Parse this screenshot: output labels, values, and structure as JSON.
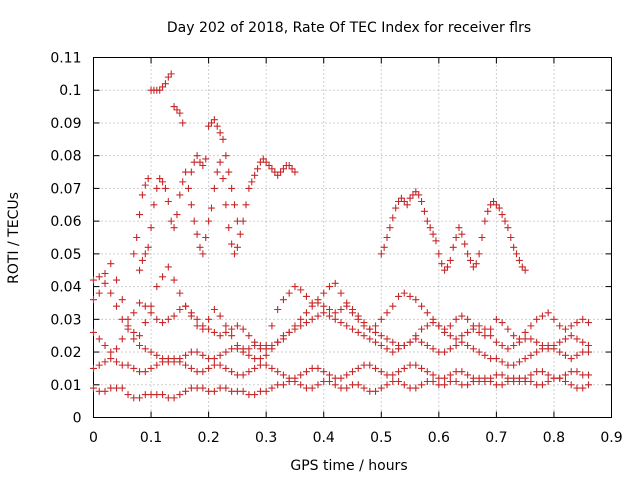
{
  "chart_data": {
    "type": "scatter",
    "title": "Day 202 of 2018, Rate Of TEC Index for receiver flrs",
    "xlabel": "GPS time / hours",
    "ylabel": "ROTI / TECUs",
    "xlim": [
      0,
      0.9
    ],
    "ylim": [
      0,
      0.11
    ],
    "xticks": [
      "0",
      "0.1",
      "0.2",
      "0.3",
      "0.4",
      "0.5",
      "0.6",
      "0.7",
      "0.8",
      "0.9"
    ],
    "yticks": [
      "0",
      "0.01",
      "0.02",
      "0.03",
      "0.04",
      "0.05",
      "0.06",
      "0.07",
      "0.08",
      "0.09",
      "0.1",
      "0.11"
    ],
    "grid": true,
    "marker": "+",
    "series_color": "#c8282a",
    "series": [
      {
        "name": "ROTI",
        "x": [
          0.0,
          0.01,
          0.02,
          0.03,
          0.04,
          0.05,
          0.06,
          0.07,
          0.08,
          0.09,
          0.1,
          0.11,
          0.12,
          0.13,
          0.14,
          0.15,
          0.16,
          0.17,
          0.18,
          0.19,
          0.2,
          0.21,
          0.22,
          0.23,
          0.24,
          0.25,
          0.26,
          0.27,
          0.28,
          0.29,
          0.3,
          0.31,
          0.32,
          0.33,
          0.34,
          0.35,
          0.36,
          0.37,
          0.38,
          0.39,
          0.4,
          0.41,
          0.42,
          0.43,
          0.44,
          0.45,
          0.46,
          0.47,
          0.48,
          0.49,
          0.5,
          0.51,
          0.52,
          0.53,
          0.54,
          0.55,
          0.56,
          0.57,
          0.58,
          0.59,
          0.6,
          0.61,
          0.62,
          0.63,
          0.64,
          0.65,
          0.66,
          0.67,
          0.68,
          0.69,
          0.7,
          0.71,
          0.72,
          0.73,
          0.74,
          0.75,
          0.76,
          0.77,
          0.78,
          0.79,
          0.8,
          0.81,
          0.82,
          0.83,
          0.84,
          0.85,
          0.86,
          0.07,
          0.075,
          0.08,
          0.085,
          0.09,
          0.095,
          0.1,
          0.105,
          0.11,
          0.115,
          0.12,
          0.125,
          0.13,
          0.135,
          0.14,
          0.145,
          0.15,
          0.155,
          0.17,
          0.175,
          0.18,
          0.185,
          0.19,
          0.195,
          0.2,
          0.205,
          0.21,
          0.215,
          0.22,
          0.225,
          0.23,
          0.235,
          0.24,
          0.245,
          0.25,
          0.08,
          0.085,
          0.09,
          0.095,
          0.1,
          0.105,
          0.11,
          0.115,
          0.12,
          0.125,
          0.13,
          0.135,
          0.14,
          0.145,
          0.15,
          0.155,
          0.16,
          0.165,
          0.17,
          0.175,
          0.18,
          0.185,
          0.19,
          0.195,
          0.2,
          0.205,
          0.21,
          0.215,
          0.22,
          0.225,
          0.23,
          0.235,
          0.24,
          0.245,
          0.25,
          0.255,
          0.26,
          0.265,
          0.27,
          0.275,
          0.28,
          0.285,
          0.29,
          0.295,
          0.3,
          0.305,
          0.31,
          0.315,
          0.32,
          0.325,
          0.33,
          0.335,
          0.34,
          0.345,
          0.35,
          0.5,
          0.505,
          0.51,
          0.515,
          0.52,
          0.525,
          0.53,
          0.535,
          0.54,
          0.545,
          0.55,
          0.555,
          0.56,
          0.565,
          0.57,
          0.575,
          0.58,
          0.585,
          0.59,
          0.595,
          0.6,
          0.605,
          0.61,
          0.615,
          0.62,
          0.625,
          0.63,
          0.635,
          0.64,
          0.645,
          0.65,
          0.655,
          0.66,
          0.665,
          0.67,
          0.675,
          0.68,
          0.685,
          0.69,
          0.695,
          0.7,
          0.705,
          0.71,
          0.715,
          0.72,
          0.725,
          0.73,
          0.735,
          0.74,
          0.745,
          0.75,
          0.0,
          0.01,
          0.02,
          0.03,
          0.04,
          0.05,
          0.06,
          0.07,
          0.08,
          0.09,
          0.1,
          0.11,
          0.12,
          0.13,
          0.14,
          0.15,
          0.16,
          0.17,
          0.18,
          0.19,
          0.2,
          0.21,
          0.22,
          0.23,
          0.24,
          0.25,
          0.26,
          0.27,
          0.28,
          0.29,
          0.3,
          0.31,
          0.32,
          0.33,
          0.34,
          0.35,
          0.36,
          0.37,
          0.38,
          0.39,
          0.4,
          0.41,
          0.42,
          0.43,
          0.44,
          0.45,
          0.46,
          0.47,
          0.48,
          0.49,
          0.5,
          0.51,
          0.52,
          0.53,
          0.54,
          0.55,
          0.56,
          0.57,
          0.58,
          0.59,
          0.6,
          0.61,
          0.62,
          0.63,
          0.64,
          0.65,
          0.66,
          0.67,
          0.68,
          0.69,
          0.7,
          0.71,
          0.72,
          0.73,
          0.74,
          0.75,
          0.76,
          0.77,
          0.78,
          0.79,
          0.8,
          0.81,
          0.82,
          0.83,
          0.84,
          0.85,
          0.86,
          0.0,
          0.01,
          0.02,
          0.03,
          0.04,
          0.05,
          0.06,
          0.07,
          0.08,
          0.09,
          0.1,
          0.11,
          0.12,
          0.13,
          0.14,
          0.15,
          0.16,
          0.17,
          0.18,
          0.19,
          0.2,
          0.21,
          0.22,
          0.23,
          0.24,
          0.25,
          0.26,
          0.27,
          0.28,
          0.29,
          0.3,
          0.31,
          0.32,
          0.33,
          0.34,
          0.35,
          0.36,
          0.37,
          0.38,
          0.39,
          0.4,
          0.41,
          0.42,
          0.43,
          0.44,
          0.45,
          0.46,
          0.47,
          0.48,
          0.49,
          0.5,
          0.51,
          0.52,
          0.53,
          0.54,
          0.55,
          0.56,
          0.57,
          0.58,
          0.59,
          0.6,
          0.61,
          0.62,
          0.63,
          0.64,
          0.65,
          0.66,
          0.67,
          0.68,
          0.69,
          0.7,
          0.71,
          0.72,
          0.73,
          0.74,
          0.75,
          0.76,
          0.77,
          0.78,
          0.79,
          0.8,
          0.81,
          0.82,
          0.83,
          0.84,
          0.85,
          0.86,
          0.0,
          0.01,
          0.02,
          0.03,
          0.04,
          0.05,
          0.06,
          0.07,
          0.08,
          0.09,
          0.1,
          0.11,
          0.12,
          0.13,
          0.14,
          0.15,
          0.16,
          0.17,
          0.18,
          0.19,
          0.2,
          0.21,
          0.22,
          0.23,
          0.24,
          0.25,
          0.26,
          0.27,
          0.28,
          0.29,
          0.3,
          0.31,
          0.32,
          0.33,
          0.34,
          0.35,
          0.36,
          0.37,
          0.38,
          0.39,
          0.4,
          0.41,
          0.42,
          0.43,
          0.44,
          0.45,
          0.46,
          0.47,
          0.48,
          0.49,
          0.5,
          0.51,
          0.52,
          0.53,
          0.54,
          0.55,
          0.56,
          0.57,
          0.58,
          0.59,
          0.6,
          0.61,
          0.62,
          0.63,
          0.64,
          0.65,
          0.66,
          0.67,
          0.68,
          0.69,
          0.7,
          0.71,
          0.72,
          0.73,
          0.74,
          0.75,
          0.76,
          0.77,
          0.78,
          0.79,
          0.8,
          0.81,
          0.82,
          0.83,
          0.84,
          0.85,
          0.86,
          0.0,
          0.01,
          0.02,
          0.03,
          0.04,
          0.05,
          0.06,
          0.07,
          0.08,
          0.09,
          0.1,
          0.11,
          0.12,
          0.13,
          0.14,
          0.15,
          0.16,
          0.17,
          0.18,
          0.19,
          0.2,
          0.21,
          0.22,
          0.23,
          0.24,
          0.25,
          0.26,
          0.27,
          0.28,
          0.29,
          0.3,
          0.31,
          0.32,
          0.33,
          0.34,
          0.35,
          0.36,
          0.37,
          0.38,
          0.39,
          0.4,
          0.41,
          0.42,
          0.43,
          0.44,
          0.45,
          0.46,
          0.47,
          0.48,
          0.49,
          0.5,
          0.51,
          0.52,
          0.53,
          0.54,
          0.55,
          0.56,
          0.57,
          0.58,
          0.59,
          0.6,
          0.61,
          0.62,
          0.63,
          0.64,
          0.65,
          0.66,
          0.67,
          0.68,
          0.69,
          0.7,
          0.71,
          0.72,
          0.73,
          0.74,
          0.75,
          0.76,
          0.77,
          0.78,
          0.79,
          0.8,
          0.81,
          0.82,
          0.83,
          0.84,
          0.85,
          0.86
        ],
        "y": [
          0.036,
          0.038,
          0.044,
          0.047,
          0.042,
          0.036,
          0.03,
          0.026,
          0.025,
          0.029,
          0.034,
          0.04,
          0.043,
          0.046,
          0.042,
          0.038,
          0.034,
          0.031,
          0.028,
          0.027,
          0.03,
          0.033,
          0.031,
          0.028,
          0.025,
          0.022,
          0.021,
          0.021,
          0.022,
          0.021,
          0.022,
          0.028,
          0.033,
          0.036,
          0.038,
          0.04,
          0.039,
          0.037,
          0.035,
          0.036,
          0.038,
          0.04,
          0.041,
          0.038,
          0.035,
          0.032,
          0.03,
          0.028,
          0.027,
          0.028,
          0.03,
          0.032,
          0.034,
          0.037,
          0.038,
          0.037,
          0.036,
          0.034,
          0.032,
          0.03,
          0.028,
          0.027,
          0.028,
          0.03,
          0.031,
          0.03,
          0.028,
          0.026,
          0.025,
          0.027,
          0.03,
          0.029,
          0.027,
          0.025,
          0.024,
          0.026,
          0.028,
          0.03,
          0.031,
          0.032,
          0.03,
          0.028,
          0.027,
          0.028,
          0.029,
          0.03,
          0.029,
          0.05,
          0.055,
          0.062,
          0.068,
          0.071,
          0.073,
          0.1,
          0.1,
          0.1,
          0.1,
          0.101,
          0.102,
          0.104,
          0.105,
          0.095,
          0.094,
          0.093,
          0.09,
          0.075,
          0.078,
          0.08,
          0.078,
          0.077,
          0.079,
          0.089,
          0.09,
          0.091,
          0.089,
          0.087,
          0.085,
          0.08,
          0.075,
          0.07,
          0.065,
          0.06,
          0.045,
          0.048,
          0.05,
          0.052,
          0.058,
          0.065,
          0.07,
          0.073,
          0.072,
          0.07,
          0.066,
          0.06,
          0.058,
          0.062,
          0.068,
          0.072,
          0.075,
          0.07,
          0.065,
          0.06,
          0.056,
          0.052,
          0.05,
          0.055,
          0.06,
          0.064,
          0.07,
          0.075,
          0.078,
          0.073,
          0.065,
          0.058,
          0.053,
          0.05,
          0.052,
          0.056,
          0.06,
          0.065,
          0.07,
          0.072,
          0.074,
          0.076,
          0.078,
          0.079,
          0.078,
          0.077,
          0.076,
          0.075,
          0.074,
          0.075,
          0.076,
          0.077,
          0.077,
          0.076,
          0.075,
          0.05,
          0.052,
          0.055,
          0.058,
          0.061,
          0.064,
          0.066,
          0.067,
          0.066,
          0.065,
          0.067,
          0.068,
          0.069,
          0.068,
          0.066,
          0.063,
          0.06,
          0.058,
          0.056,
          0.054,
          0.05,
          0.047,
          0.045,
          0.046,
          0.048,
          0.052,
          0.055,
          0.058,
          0.056,
          0.053,
          0.05,
          0.048,
          0.046,
          0.047,
          0.05,
          0.055,
          0.06,
          0.063,
          0.065,
          0.066,
          0.065,
          0.064,
          0.062,
          0.06,
          0.058,
          0.055,
          0.052,
          0.05,
          0.048,
          0.046,
          0.045,
          0.042,
          0.043,
          0.041,
          0.038,
          0.034,
          0.03,
          0.027,
          0.024,
          0.022,
          0.021,
          0.02,
          0.019,
          0.018,
          0.017,
          0.017,
          0.018,
          0.019,
          0.02,
          0.02,
          0.019,
          0.018,
          0.018,
          0.019,
          0.02,
          0.021,
          0.021,
          0.02,
          0.019,
          0.018,
          0.018,
          0.019,
          0.021,
          0.023,
          0.025,
          0.026,
          0.027,
          0.028,
          0.029,
          0.03,
          0.031,
          0.032,
          0.031,
          0.03,
          0.029,
          0.028,
          0.027,
          0.026,
          0.025,
          0.024,
          0.023,
          0.022,
          0.021,
          0.02,
          0.021,
          0.022,
          0.023,
          0.024,
          0.023,
          0.022,
          0.021,
          0.02,
          0.02,
          0.021,
          0.022,
          0.023,
          0.022,
          0.021,
          0.02,
          0.019,
          0.018,
          0.018,
          0.017,
          0.016,
          0.016,
          0.017,
          0.018,
          0.019,
          0.02,
          0.021,
          0.022,
          0.021,
          0.02,
          0.019,
          0.018,
          0.019,
          0.02,
          0.02,
          0.015,
          0.016,
          0.017,
          0.018,
          0.017,
          0.016,
          0.016,
          0.015,
          0.014,
          0.014,
          0.015,
          0.016,
          0.017,
          0.018,
          0.018,
          0.017,
          0.016,
          0.015,
          0.014,
          0.014,
          0.015,
          0.016,
          0.016,
          0.015,
          0.014,
          0.013,
          0.013,
          0.014,
          0.015,
          0.016,
          0.016,
          0.015,
          0.014,
          0.013,
          0.012,
          0.012,
          0.013,
          0.014,
          0.015,
          0.015,
          0.014,
          0.013,
          0.012,
          0.012,
          0.013,
          0.014,
          0.015,
          0.016,
          0.016,
          0.015,
          0.014,
          0.013,
          0.013,
          0.014,
          0.015,
          0.016,
          0.016,
          0.015,
          0.014,
          0.013,
          0.012,
          0.012,
          0.013,
          0.014,
          0.014,
          0.013,
          0.012,
          0.011,
          0.011,
          0.012,
          0.013,
          0.013,
          0.012,
          0.011,
          0.011,
          0.012,
          0.013,
          0.014,
          0.014,
          0.013,
          0.012,
          0.012,
          0.013,
          0.014,
          0.014,
          0.013,
          0.013,
          0.009,
          0.008,
          0.008,
          0.009,
          0.009,
          0.009,
          0.007,
          0.006,
          0.006,
          0.007,
          0.007,
          0.007,
          0.007,
          0.006,
          0.006,
          0.007,
          0.008,
          0.009,
          0.009,
          0.009,
          0.008,
          0.008,
          0.009,
          0.009,
          0.008,
          0.008,
          0.008,
          0.007,
          0.007,
          0.008,
          0.008,
          0.009,
          0.01,
          0.01,
          0.011,
          0.011,
          0.01,
          0.009,
          0.009,
          0.01,
          0.011,
          0.011,
          0.01,
          0.009,
          0.009,
          0.01,
          0.01,
          0.009,
          0.008,
          0.008,
          0.009,
          0.01,
          0.011,
          0.011,
          0.01,
          0.009,
          0.009,
          0.01,
          0.011,
          0.011,
          0.01,
          0.01,
          0.011,
          0.011,
          0.01,
          0.01,
          0.011,
          0.012,
          0.012,
          0.011,
          0.01,
          0.01,
          0.011,
          0.012,
          0.012,
          0.011,
          0.011,
          0.01,
          0.01,
          0.011,
          0.012,
          0.012,
          0.011,
          0.01,
          0.009,
          0.009,
          0.01,
          0.026,
          0.024,
          0.022,
          0.02,
          0.021,
          0.024,
          0.028,
          0.032,
          0.035,
          0.034,
          0.032,
          0.03,
          0.029,
          0.03,
          0.031,
          0.033,
          0.034,
          0.032,
          0.03,
          0.028,
          0.027,
          0.026,
          0.025,
          0.026,
          0.027,
          0.028,
          0.027,
          0.025,
          0.023,
          0.022,
          0.021,
          0.022,
          0.023,
          0.024,
          0.026,
          0.028,
          0.03,
          0.032,
          0.034,
          0.035,
          0.034,
          0.033,
          0.032,
          0.033,
          0.034,
          0.033,
          0.031,
          0.029,
          0.027,
          0.026,
          0.025,
          0.024,
          0.023,
          0.022,
          0.022,
          0.023,
          0.025,
          0.027,
          0.028,
          0.029,
          0.028,
          0.026,
          0.025,
          0.024,
          0.025,
          0.026,
          0.027,
          0.028,
          0.027,
          0.025,
          0.023,
          0.022,
          0.021,
          0.022,
          0.023,
          0.024,
          0.024,
          0.023,
          0.022,
          0.021,
          0.022,
          0.023,
          0.024,
          0.025,
          0.024,
          0.023,
          0.022
        ]
      }
    ]
  }
}
